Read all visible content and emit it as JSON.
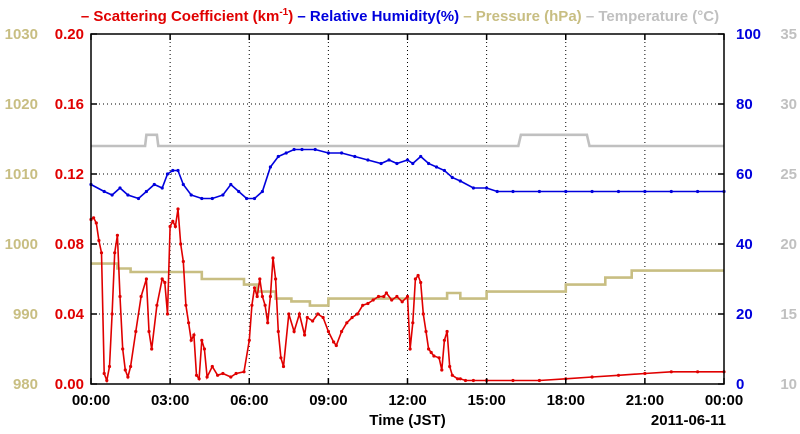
{
  "chart_data": {
    "type": "line",
    "legend_position": "top",
    "grid": true,
    "xlabel": "Time (JST)",
    "date_label": "2011-06-11",
    "x_range_hours": [
      0,
      24
    ],
    "x_ticks": [
      {
        "label": "00:00",
        "hour": 0
      },
      {
        "label": "03:00",
        "hour": 3
      },
      {
        "label": "06:00",
        "hour": 6
      },
      {
        "label": "09:00",
        "hour": 9
      },
      {
        "label": "12:00",
        "hour": 12
      },
      {
        "label": "15:00",
        "hour": 15
      },
      {
        "label": "18:00",
        "hour": 18
      },
      {
        "label": "21:00",
        "hour": 21
      },
      {
        "label": "00:00",
        "hour": 24
      }
    ],
    "axes": {
      "pressure": {
        "ticks": [
          "980",
          "990",
          "1000",
          "1010",
          "1020",
          "1030"
        ],
        "range": [
          980,
          1030
        ],
        "color": "#c8be82"
      },
      "scattering": {
        "ticks": [
          "0.00",
          "0.04",
          "0.08",
          "0.12",
          "0.16",
          "0.20"
        ],
        "range": [
          0,
          0.2
        ],
        "color": "#e00000"
      },
      "humidity": {
        "ticks": [
          "0",
          "20",
          "40",
          "60",
          "80",
          "100"
        ],
        "range": [
          0,
          100
        ],
        "color": "#0000dd"
      },
      "temperature": {
        "ticks": [
          "10",
          "15",
          "20",
          "25",
          "30",
          "35"
        ],
        "range": [
          10,
          35
        ],
        "color": "#c0c0c0"
      }
    },
    "legend": [
      {
        "dash": "–",
        "text": "Scattering Coefficient (km",
        "sup": "-1",
        "after": ")",
        "color": "#e00000"
      },
      {
        "dash": "–",
        "text": "Relative Humidity(%)",
        "color": "#0000dd"
      },
      {
        "dash": "–",
        "text": "Pressure (hPa)",
        "color": "#c8be82"
      },
      {
        "dash": "–",
        "text": "Temperature (°C)",
        "color": "#c0c0c0"
      }
    ],
    "series": [
      {
        "key": "temperature",
        "color": "#c0c0c0",
        "axis": "temperature",
        "markers": false,
        "points": [
          [
            0,
            27
          ],
          [
            2.05,
            27
          ],
          [
            2.1,
            27.8
          ],
          [
            2.5,
            27.8
          ],
          [
            2.55,
            27
          ],
          [
            16.2,
            27
          ],
          [
            16.3,
            27.8
          ],
          [
            18.8,
            27.8
          ],
          [
            18.9,
            27
          ],
          [
            24,
            27
          ]
        ]
      },
      {
        "key": "humidity",
        "color": "#0000dd",
        "axis": "humidity",
        "markers": true,
        "points": [
          [
            0,
            57
          ],
          [
            0.5,
            55
          ],
          [
            0.8,
            54
          ],
          [
            1.1,
            56
          ],
          [
            1.4,
            54
          ],
          [
            1.8,
            53
          ],
          [
            2.1,
            55
          ],
          [
            2.4,
            57
          ],
          [
            2.7,
            56
          ],
          [
            2.9,
            60
          ],
          [
            3.1,
            61
          ],
          [
            3.3,
            61
          ],
          [
            3.5,
            57
          ],
          [
            3.8,
            54
          ],
          [
            4.2,
            53
          ],
          [
            4.6,
            53
          ],
          [
            5.0,
            54
          ],
          [
            5.3,
            57
          ],
          [
            5.6,
            55
          ],
          [
            5.9,
            53
          ],
          [
            6.2,
            53
          ],
          [
            6.5,
            55
          ],
          [
            6.8,
            62
          ],
          [
            7.1,
            65
          ],
          [
            7.4,
            66
          ],
          [
            7.7,
            67
          ],
          [
            8.0,
            67
          ],
          [
            8.5,
            67
          ],
          [
            9.0,
            66
          ],
          [
            9.5,
            66
          ],
          [
            10.0,
            65
          ],
          [
            10.5,
            64
          ],
          [
            11.0,
            63
          ],
          [
            11.3,
            64
          ],
          [
            11.6,
            63
          ],
          [
            12.0,
            64
          ],
          [
            12.2,
            63
          ],
          [
            12.5,
            65
          ],
          [
            12.8,
            63
          ],
          [
            13.1,
            62
          ],
          [
            13.4,
            61
          ],
          [
            13.7,
            59
          ],
          [
            14.0,
            58
          ],
          [
            14.5,
            56
          ],
          [
            15.0,
            56
          ],
          [
            15.4,
            55
          ],
          [
            16.0,
            55
          ],
          [
            17.0,
            55
          ],
          [
            18.0,
            55
          ],
          [
            19.0,
            55
          ],
          [
            20.0,
            55
          ],
          [
            21.0,
            55
          ],
          [
            22.0,
            55
          ],
          [
            23.0,
            55
          ],
          [
            24,
            55
          ]
        ]
      },
      {
        "key": "pressure",
        "color": "#c8be82",
        "axis": "pressure",
        "markers": false,
        "points": [
          [
            0,
            997.2
          ],
          [
            1.0,
            997.2
          ],
          [
            1.0,
            996.5
          ],
          [
            1.5,
            996.5
          ],
          [
            1.5,
            996.0
          ],
          [
            4.2,
            996.0
          ],
          [
            4.2,
            995.0
          ],
          [
            5.8,
            995.0
          ],
          [
            5.8,
            994.2
          ],
          [
            6.3,
            994.2
          ],
          [
            6.3,
            993.2
          ],
          [
            7.0,
            993.2
          ],
          [
            7.0,
            992.2
          ],
          [
            7.6,
            992.2
          ],
          [
            7.6,
            991.8
          ],
          [
            8.3,
            991.8
          ],
          [
            8.3,
            991.2
          ],
          [
            9.0,
            991.2
          ],
          [
            9.0,
            992.2
          ],
          [
            13.5,
            992.2
          ],
          [
            13.5,
            993.0
          ],
          [
            14.0,
            993.0
          ],
          [
            14.0,
            992.2
          ],
          [
            15.0,
            992.2
          ],
          [
            15.0,
            993.2
          ],
          [
            18.0,
            993.2
          ],
          [
            18.0,
            994.2
          ],
          [
            19.5,
            994.2
          ],
          [
            19.5,
            995.2
          ],
          [
            20.5,
            995.2
          ],
          [
            20.5,
            996.2
          ],
          [
            24,
            996.2
          ]
        ]
      },
      {
        "key": "scattering",
        "color": "#e00000",
        "axis": "scattering",
        "markers": true,
        "points": [
          [
            0,
            0.094
          ],
          [
            0.1,
            0.095
          ],
          [
            0.2,
            0.092
          ],
          [
            0.3,
            0.082
          ],
          [
            0.4,
            0.075
          ],
          [
            0.5,
            0.006
          ],
          [
            0.6,
            0.002
          ],
          [
            0.7,
            0.01
          ],
          [
            0.8,
            0.04
          ],
          [
            0.9,
            0.075
          ],
          [
            1.0,
            0.085
          ],
          [
            1.1,
            0.05
          ],
          [
            1.2,
            0.02
          ],
          [
            1.3,
            0.008
          ],
          [
            1.4,
            0.004
          ],
          [
            1.5,
            0.01
          ],
          [
            1.7,
            0.03
          ],
          [
            1.9,
            0.05
          ],
          [
            2.1,
            0.06
          ],
          [
            2.2,
            0.03
          ],
          [
            2.3,
            0.02
          ],
          [
            2.5,
            0.045
          ],
          [
            2.7,
            0.06
          ],
          [
            2.8,
            0.058
          ],
          [
            2.9,
            0.04
          ],
          [
            3.0,
            0.09
          ],
          [
            3.1,
            0.093
          ],
          [
            3.2,
            0.09
          ],
          [
            3.3,
            0.1
          ],
          [
            3.4,
            0.08
          ],
          [
            3.5,
            0.07
          ],
          [
            3.6,
            0.045
          ],
          [
            3.7,
            0.035
          ],
          [
            3.8,
            0.025
          ],
          [
            3.9,
            0.028
          ],
          [
            4.0,
            0.005
          ],
          [
            4.1,
            0.003
          ],
          [
            4.2,
            0.025
          ],
          [
            4.3,
            0.02
          ],
          [
            4.4,
            0.004
          ],
          [
            4.6,
            0.01
          ],
          [
            4.8,
            0.005
          ],
          [
            5.0,
            0.006
          ],
          [
            5.3,
            0.004
          ],
          [
            5.5,
            0.006
          ],
          [
            5.8,
            0.007
          ],
          [
            6.0,
            0.025
          ],
          [
            6.1,
            0.045
          ],
          [
            6.2,
            0.055
          ],
          [
            6.3,
            0.05
          ],
          [
            6.4,
            0.06
          ],
          [
            6.5,
            0.05
          ],
          [
            6.6,
            0.045
          ],
          [
            6.7,
            0.035
          ],
          [
            6.8,
            0.05
          ],
          [
            6.9,
            0.072
          ],
          [
            7.0,
            0.06
          ],
          [
            7.1,
            0.03
          ],
          [
            7.2,
            0.015
          ],
          [
            7.3,
            0.01
          ],
          [
            7.5,
            0.04
          ],
          [
            7.7,
            0.03
          ],
          [
            7.9,
            0.04
          ],
          [
            8.1,
            0.028
          ],
          [
            8.2,
            0.038
          ],
          [
            8.4,
            0.036
          ],
          [
            8.6,
            0.04
          ],
          [
            8.8,
            0.038
          ],
          [
            9.0,
            0.03
          ],
          [
            9.2,
            0.024
          ],
          [
            9.3,
            0.022
          ],
          [
            9.5,
            0.03
          ],
          [
            9.7,
            0.035
          ],
          [
            9.9,
            0.038
          ],
          [
            10.1,
            0.04
          ],
          [
            10.3,
            0.045
          ],
          [
            10.5,
            0.046
          ],
          [
            10.7,
            0.048
          ],
          [
            10.9,
            0.05
          ],
          [
            11.1,
            0.05
          ],
          [
            11.2,
            0.052
          ],
          [
            11.4,
            0.048
          ],
          [
            11.6,
            0.05
          ],
          [
            11.8,
            0.047
          ],
          [
            12.0,
            0.05
          ],
          [
            12.1,
            0.02
          ],
          [
            12.2,
            0.035
          ],
          [
            12.3,
            0.06
          ],
          [
            12.4,
            0.062
          ],
          [
            12.5,
            0.058
          ],
          [
            12.6,
            0.04
          ],
          [
            12.7,
            0.03
          ],
          [
            12.8,
            0.02
          ],
          [
            12.9,
            0.018
          ],
          [
            13.0,
            0.016
          ],
          [
            13.2,
            0.015
          ],
          [
            13.3,
            0.008
          ],
          [
            13.4,
            0.025
          ],
          [
            13.5,
            0.03
          ],
          [
            13.6,
            0.01
          ],
          [
            13.7,
            0.005
          ],
          [
            13.9,
            0.003
          ],
          [
            14.0,
            0.003
          ],
          [
            14.2,
            0.002
          ],
          [
            14.5,
            0.002
          ],
          [
            15.0,
            0.002
          ],
          [
            16.0,
            0.002
          ],
          [
            17.0,
            0.002
          ],
          [
            18.0,
            0.003
          ],
          [
            19.0,
            0.004
          ],
          [
            20.0,
            0.005
          ],
          [
            21.0,
            0.006
          ],
          [
            22.0,
            0.007
          ],
          [
            23.0,
            0.007
          ],
          [
            24,
            0.007
          ]
        ]
      }
    ]
  }
}
